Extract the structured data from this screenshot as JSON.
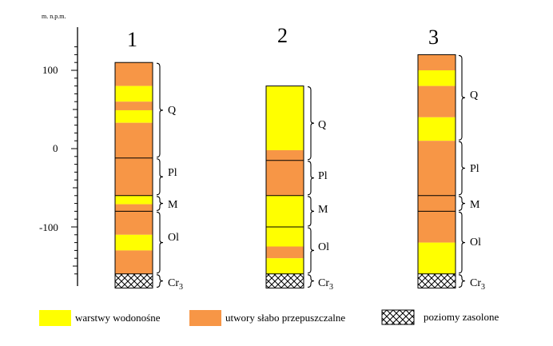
{
  "colors": {
    "water": "#ffff00",
    "low": "#f79646",
    "outline": "#000000"
  },
  "axis": {
    "unit_label": "m. n.p.m.",
    "range": [
      -165,
      135
    ],
    "major_ticks": [
      100,
      0,
      -100
    ],
    "tick_labels": [
      "100",
      "0",
      "-100"
    ]
  },
  "columns": [
    {
      "label": "1",
      "top": 110,
      "layers": [
        {
          "from": 110,
          "to": 80,
          "kind": "low"
        },
        {
          "from": 80,
          "to": 60,
          "kind": "water"
        },
        {
          "from": 60,
          "to": 49,
          "kind": "low"
        },
        {
          "from": 49,
          "to": 33,
          "kind": "water"
        },
        {
          "from": 33,
          "to": -60,
          "kind": "low"
        },
        {
          "from": -60,
          "to": -71,
          "kind": "water"
        },
        {
          "from": -71,
          "to": -110,
          "kind": "low"
        },
        {
          "from": -110,
          "to": -130,
          "kind": "water"
        },
        {
          "from": -130,
          "to": -160,
          "kind": "low"
        },
        {
          "from": -160,
          "to": -178,
          "kind": "salt"
        }
      ],
      "lines": [
        -12,
        -60,
        -80,
        -160
      ],
      "units": [
        {
          "name": "Q",
          "from": 110,
          "to": -12
        },
        {
          "name": "Pl",
          "from": -12,
          "to": -60
        },
        {
          "name": "M",
          "from": -60,
          "to": -80
        },
        {
          "name": "Ol",
          "from": -80,
          "to": -160
        },
        {
          "name": "Cr3",
          "from": -160,
          "to": -178
        }
      ]
    },
    {
      "label": "2",
      "top": 80,
      "layers": [
        {
          "from": 80,
          "to": -2,
          "kind": "water"
        },
        {
          "from": -2,
          "to": -60,
          "kind": "low"
        },
        {
          "from": -60,
          "to": -125,
          "kind": "water"
        },
        {
          "from": -125,
          "to": -140,
          "kind": "low"
        },
        {
          "from": -140,
          "to": -160,
          "kind": "water"
        },
        {
          "from": -160,
          "to": -178,
          "kind": "salt"
        }
      ],
      "lines": [
        -15,
        -60,
        -100,
        -160
      ],
      "units": [
        {
          "name": "Q",
          "from": 80,
          "to": -15
        },
        {
          "name": "Pl",
          "from": -15,
          "to": -60
        },
        {
          "name": "M",
          "from": -60,
          "to": -100
        },
        {
          "name": "Ol",
          "from": -100,
          "to": -160
        },
        {
          "name": "Cr3",
          "from": -160,
          "to": -178
        }
      ]
    },
    {
      "label": "3",
      "top": 120,
      "layers": [
        {
          "from": 120,
          "to": 100,
          "kind": "low"
        },
        {
          "from": 100,
          "to": 80,
          "kind": "water"
        },
        {
          "from": 80,
          "to": 40,
          "kind": "low"
        },
        {
          "from": 40,
          "to": 10,
          "kind": "water"
        },
        {
          "from": 10,
          "to": -120,
          "kind": "low"
        },
        {
          "from": -120,
          "to": -160,
          "kind": "water"
        },
        {
          "from": -160,
          "to": -178,
          "kind": "salt"
        }
      ],
      "lines": [
        -60,
        -80,
        -160
      ],
      "units": [
        {
          "name": "Q",
          "from": 120,
          "to": 10
        },
        {
          "name": "Pl",
          "from": 10,
          "to": -60
        },
        {
          "name": "M",
          "from": -60,
          "to": -80
        },
        {
          "name": "Ol",
          "from": -80,
          "to": -160
        },
        {
          "name": "Cr3",
          "from": -160,
          "to": -178
        }
      ]
    }
  ],
  "legend": [
    {
      "kind": "water",
      "label": "warstwy wodonośne"
    },
    {
      "kind": "low",
      "label": "utwory słabo przepuszczalne"
    },
    {
      "kind": "salt",
      "label": "poziomy zasolone"
    }
  ]
}
